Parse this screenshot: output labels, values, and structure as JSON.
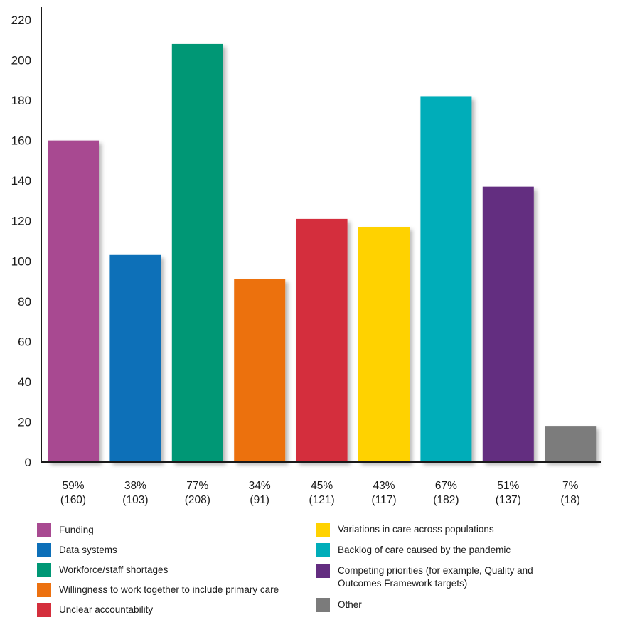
{
  "chart_data": {
    "type": "bar",
    "title": "",
    "xlabel": "",
    "ylabel": "",
    "ylim": [
      0,
      220
    ],
    "yticks": [
      0,
      20,
      40,
      60,
      80,
      100,
      120,
      140,
      160,
      180,
      200,
      220
    ],
    "grid": false,
    "legend_position": "bottom",
    "categories": [
      "Funding",
      "Data systems",
      "Workforce/staff shortages",
      "Willingness to work together to include primary care",
      "Unclear accountability",
      "Variations in care across populations",
      "Backlog of care caused by the pandemic",
      "Competing priorities (for example, Quality and Outcomes Framework targets)",
      "Other"
    ],
    "values": [
      160,
      103,
      208,
      91,
      121,
      117,
      182,
      137,
      18
    ],
    "percent_labels": [
      "59%",
      "38%",
      "77%",
      "34%",
      "45%",
      "43%",
      "67%",
      "51%",
      "7%"
    ],
    "count_labels": [
      "(160)",
      "(103)",
      "(208)",
      "(91)",
      "(121)",
      "(117)",
      "(182)",
      "(137)",
      "(18)"
    ],
    "colors": [
      "#a84a91",
      "#0d6fb8",
      "#009775",
      "#ec7110",
      "#d42f3c",
      "#ffd200",
      "#00adb9",
      "#632d80",
      "#7b7b7b"
    ]
  },
  "legend": {
    "left": [
      {
        "label": "Funding",
        "color": "#a84a91"
      },
      {
        "label": "Data systems",
        "color": "#0d6fb8"
      },
      {
        "label": "Workforce/staff shortages",
        "color": "#009775"
      },
      {
        "label": "Willingness to work together to include primary care",
        "color": "#ec7110"
      },
      {
        "label": "Unclear accountability",
        "color": "#d42f3c"
      }
    ],
    "right": [
      {
        "label": "Variations in care across populations",
        "color": "#ffd200"
      },
      {
        "label": "Backlog of care caused by the pandemic",
        "color": "#00adb9"
      },
      {
        "label": "Competing priorities (for example, Quality and Outcomes Framework targets)",
        "color": "#632d80"
      },
      {
        "label": "Other",
        "color": "#7b7b7b"
      }
    ]
  }
}
